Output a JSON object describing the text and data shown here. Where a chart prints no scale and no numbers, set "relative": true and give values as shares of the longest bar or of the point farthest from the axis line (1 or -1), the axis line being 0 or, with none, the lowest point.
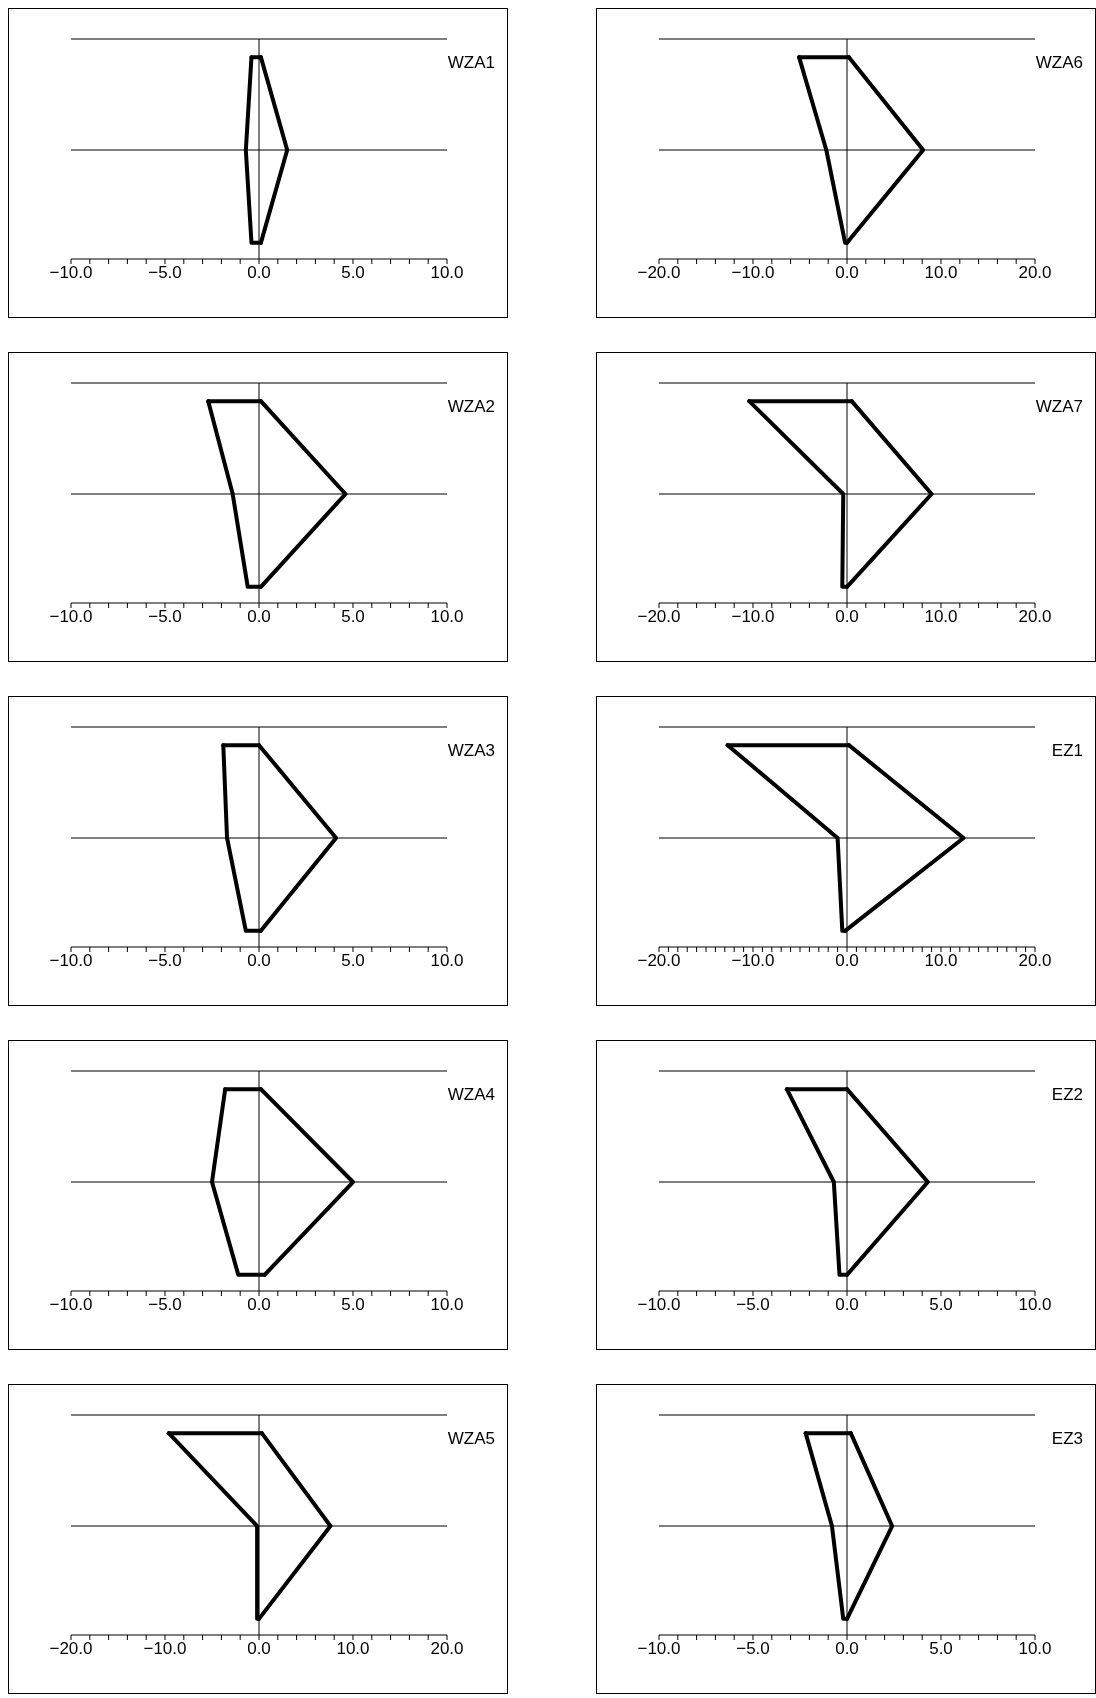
{
  "chart_data": [
    {
      "type": "line",
      "title": "WZA1",
      "relative": true,
      "tick_labels": "x",
      "xlim": [
        -10,
        10
      ],
      "xticks": [
        {
          "value": -10,
          "label": "−10.0"
        },
        {
          "value": -9,
          "label": null
        },
        {
          "value": -8,
          "label": null
        },
        {
          "value": -7,
          "label": null
        },
        {
          "value": -6,
          "label": null
        },
        {
          "value": -5,
          "label": "−5.0"
        },
        {
          "value": -4,
          "label": null
        },
        {
          "value": -3,
          "label": null
        },
        {
          "value": -2,
          "label": null
        },
        {
          "value": -1,
          "label": null
        },
        {
          "value": 0,
          "label": "0.0"
        },
        {
          "value": 1,
          "label": null
        },
        {
          "value": 2,
          "label": null
        },
        {
          "value": 3,
          "label": null
        },
        {
          "value": 4,
          "label": null
        },
        {
          "value": 5,
          "label": "5.0"
        },
        {
          "value": 6,
          "label": null
        },
        {
          "value": 7,
          "label": null
        },
        {
          "value": 8,
          "label": null
        },
        {
          "value": 9,
          "label": null
        },
        {
          "value": 10,
          "label": "10.0"
        }
      ],
      "series": [
        {
          "color": "#000000",
          "x": [
            -0.4,
            0.1
          ],
          "values": [
            1,
            1
          ]
        },
        {
          "color": "#000000",
          "x": [
            0.1,
            1.5,
            0.1
          ],
          "values": [
            1,
            0.54,
            0.08
          ]
        },
        {
          "color": "#000000",
          "x": [
            0.1,
            -0.4,
            -0.7,
            -0.4
          ],
          "values": [
            0.08,
            0.08,
            0.54,
            1
          ]
        }
      ],
      "ref_lines": [
        {
          "axis": "y",
          "value": 1.09,
          "color": "#000000"
        },
        {
          "axis": "y",
          "value": 0.54,
          "color": "#000000"
        },
        {
          "axis": "x",
          "value": 0,
          "color": "#000000"
        }
      ]
    },
    {
      "type": "line",
      "title": "WZA6",
      "relative": true,
      "tick_labels": "x",
      "xlim": [
        -20,
        20
      ],
      "xticks": [
        {
          "value": -20,
          "label": "−20.0"
        },
        {
          "value": -18,
          "label": null
        },
        {
          "value": -16,
          "label": null
        },
        {
          "value": -14,
          "label": null
        },
        {
          "value": -12,
          "label": null
        },
        {
          "value": -10,
          "label": "−10.0"
        },
        {
          "value": -8,
          "label": null
        },
        {
          "value": -6,
          "label": null
        },
        {
          "value": -4,
          "label": null
        },
        {
          "value": -2,
          "label": null
        },
        {
          "value": 0,
          "label": "0.0"
        },
        {
          "value": 2,
          "label": null
        },
        {
          "value": 4,
          "label": null
        },
        {
          "value": 6,
          "label": null
        },
        {
          "value": 8,
          "label": null
        },
        {
          "value": 10,
          "label": "10.0"
        },
        {
          "value": 12,
          "label": null
        },
        {
          "value": 14,
          "label": null
        },
        {
          "value": 16,
          "label": null
        },
        {
          "value": 18,
          "label": null
        },
        {
          "value": 20,
          "label": "20.0"
        }
      ],
      "series": [
        {
          "color": "#000000",
          "x": [
            -5.1,
            0.2
          ],
          "values": [
            1,
            1
          ]
        },
        {
          "color": "#000000",
          "x": [
            0.2,
            8.1,
            0
          ],
          "values": [
            1,
            0.54,
            0.08
          ]
        },
        {
          "color": "#000000",
          "x": [
            0,
            -0.2,
            -2.2,
            -5.1
          ],
          "values": [
            0.08,
            0.08,
            0.54,
            1
          ]
        }
      ],
      "ref_lines": [
        {
          "axis": "y",
          "value": 1.09,
          "color": "#000000"
        },
        {
          "axis": "y",
          "value": 0.54,
          "color": "#000000"
        },
        {
          "axis": "x",
          "value": 0,
          "color": "#000000"
        }
      ]
    },
    {
      "type": "line",
      "title": "WZA2",
      "relative": true,
      "tick_labels": "x",
      "xlim": [
        -10,
        10
      ],
      "xticks": [
        {
          "value": -10,
          "label": "−10.0"
        },
        {
          "value": -9,
          "label": null
        },
        {
          "value": -8,
          "label": null
        },
        {
          "value": -7,
          "label": null
        },
        {
          "value": -6,
          "label": null
        },
        {
          "value": -5,
          "label": "−5.0"
        },
        {
          "value": -4,
          "label": null
        },
        {
          "value": -3,
          "label": null
        },
        {
          "value": -2,
          "label": null
        },
        {
          "value": -1,
          "label": null
        },
        {
          "value": 0,
          "label": "0.0"
        },
        {
          "value": 1,
          "label": null
        },
        {
          "value": 2,
          "label": null
        },
        {
          "value": 3,
          "label": null
        },
        {
          "value": 4,
          "label": null
        },
        {
          "value": 5,
          "label": "5.0"
        },
        {
          "value": 6,
          "label": null
        },
        {
          "value": 7,
          "label": null
        },
        {
          "value": 8,
          "label": null
        },
        {
          "value": 9,
          "label": null
        },
        {
          "value": 10,
          "label": "10.0"
        }
      ],
      "series": [
        {
          "color": "#000000",
          "x": [
            -2.7,
            0.1
          ],
          "values": [
            1,
            1
          ]
        },
        {
          "color": "#000000",
          "x": [
            0.1,
            4.6,
            0.1
          ],
          "values": [
            1,
            0.54,
            0.08
          ]
        },
        {
          "color": "#000000",
          "x": [
            0.1,
            -0.6,
            -1.4,
            -2.7
          ],
          "values": [
            0.08,
            0.08,
            0.54,
            1
          ]
        }
      ],
      "ref_lines": [
        {
          "axis": "y",
          "value": 1.09,
          "color": "#000000"
        },
        {
          "axis": "y",
          "value": 0.54,
          "color": "#000000"
        },
        {
          "axis": "x",
          "value": 0,
          "color": "#000000"
        }
      ]
    },
    {
      "type": "line",
      "title": "WZA7",
      "relative": true,
      "tick_labels": "x",
      "xlim": [
        -20,
        20
      ],
      "xticks": [
        {
          "value": -20,
          "label": "−20.0"
        },
        {
          "value": -18,
          "label": null
        },
        {
          "value": -16,
          "label": null
        },
        {
          "value": -14,
          "label": null
        },
        {
          "value": -12,
          "label": null
        },
        {
          "value": -10,
          "label": "−10.0"
        },
        {
          "value": -8,
          "label": null
        },
        {
          "value": -6,
          "label": null
        },
        {
          "value": -4,
          "label": null
        },
        {
          "value": -2,
          "label": null
        },
        {
          "value": 0,
          "label": "0.0"
        },
        {
          "value": 2,
          "label": null
        },
        {
          "value": 4,
          "label": null
        },
        {
          "value": 6,
          "label": null
        },
        {
          "value": 8,
          "label": null
        },
        {
          "value": 10,
          "label": "10.0"
        },
        {
          "value": 12,
          "label": null
        },
        {
          "value": 14,
          "label": null
        },
        {
          "value": 16,
          "label": null
        },
        {
          "value": 18,
          "label": null
        },
        {
          "value": 20,
          "label": "20.0"
        }
      ],
      "series": [
        {
          "color": "#000000",
          "x": [
            -10.4,
            0.5
          ],
          "values": [
            1,
            1
          ]
        },
        {
          "color": "#000000",
          "x": [
            0.5,
            9.0,
            0
          ],
          "values": [
            1,
            0.54,
            0.08
          ]
        },
        {
          "color": "#000000",
          "x": [
            0,
            -0.5,
            -0.4,
            -10.4
          ],
          "values": [
            0.08,
            0.08,
            0.54,
            1
          ]
        }
      ],
      "ref_lines": [
        {
          "axis": "y",
          "value": 1.09,
          "color": "#000000"
        },
        {
          "axis": "y",
          "value": 0.54,
          "color": "#000000"
        },
        {
          "axis": "x",
          "value": 0,
          "color": "#000000"
        }
      ]
    },
    {
      "type": "line",
      "title": "WZA3",
      "relative": true,
      "tick_labels": "x",
      "xlim": [
        -10,
        10
      ],
      "xticks": [
        {
          "value": -10,
          "label": "−10.0"
        },
        {
          "value": -9,
          "label": null
        },
        {
          "value": -8,
          "label": null
        },
        {
          "value": -7,
          "label": null
        },
        {
          "value": -6,
          "label": null
        },
        {
          "value": -5,
          "label": "−5.0"
        },
        {
          "value": -4,
          "label": null
        },
        {
          "value": -3,
          "label": null
        },
        {
          "value": -2,
          "label": null
        },
        {
          "value": -1,
          "label": null
        },
        {
          "value": 0,
          "label": "0.0"
        },
        {
          "value": 1,
          "label": null
        },
        {
          "value": 2,
          "label": null
        },
        {
          "value": 3,
          "label": null
        },
        {
          "value": 4,
          "label": null
        },
        {
          "value": 5,
          "label": "5.0"
        },
        {
          "value": 6,
          "label": null
        },
        {
          "value": 7,
          "label": null
        },
        {
          "value": 8,
          "label": null
        },
        {
          "value": 9,
          "label": null
        },
        {
          "value": 10,
          "label": "10.0"
        }
      ],
      "series": [
        {
          "color": "#000000",
          "x": [
            -1.9,
            0
          ],
          "values": [
            1,
            1
          ]
        },
        {
          "color": "#000000",
          "x": [
            0,
            4.1,
            0.1
          ],
          "values": [
            1,
            0.54,
            0.08
          ]
        },
        {
          "color": "#000000",
          "x": [
            0.1,
            -0.7,
            -1.7,
            -1.9
          ],
          "values": [
            0.08,
            0.08,
            0.54,
            1
          ]
        }
      ],
      "ref_lines": [
        {
          "axis": "y",
          "value": 1.09,
          "color": "#000000"
        },
        {
          "axis": "y",
          "value": 0.54,
          "color": "#000000"
        },
        {
          "axis": "x",
          "value": 0,
          "color": "#000000"
        }
      ]
    },
    {
      "type": "line",
      "title": "EZ1",
      "relative": true,
      "tick_labels": "x",
      "xlim": [
        -20,
        20
      ],
      "xticks": [
        {
          "value": -20,
          "label": "−20.0"
        },
        {
          "value": -19,
          "label": null
        },
        {
          "value": -18,
          "label": null
        },
        {
          "value": -17,
          "label": null
        },
        {
          "value": -16,
          "label": null
        },
        {
          "value": -15,
          "label": null
        },
        {
          "value": -14,
          "label": null
        },
        {
          "value": -13,
          "label": null
        },
        {
          "value": -12,
          "label": null
        },
        {
          "value": -11,
          "label": null
        },
        {
          "value": -10,
          "label": "−10.0"
        },
        {
          "value": -9,
          "label": null
        },
        {
          "value": -8,
          "label": null
        },
        {
          "value": -7,
          "label": null
        },
        {
          "value": -6,
          "label": null
        },
        {
          "value": -5,
          "label": null
        },
        {
          "value": -4,
          "label": null
        },
        {
          "value": -3,
          "label": null
        },
        {
          "value": -2,
          "label": null
        },
        {
          "value": -1,
          "label": null
        },
        {
          "value": 0,
          "label": "0.0"
        },
        {
          "value": 1,
          "label": null
        },
        {
          "value": 2,
          "label": null
        },
        {
          "value": 3,
          "label": null
        },
        {
          "value": 4,
          "label": null
        },
        {
          "value": 5,
          "label": null
        },
        {
          "value": 6,
          "label": null
        },
        {
          "value": 7,
          "label": null
        },
        {
          "value": 8,
          "label": null
        },
        {
          "value": 9,
          "label": null
        },
        {
          "value": 10,
          "label": "10.0"
        },
        {
          "value": 11,
          "label": null
        },
        {
          "value": 12,
          "label": null
        },
        {
          "value": 13,
          "label": null
        },
        {
          "value": 14,
          "label": null
        },
        {
          "value": 15,
          "label": null
        },
        {
          "value": 16,
          "label": null
        },
        {
          "value": 17,
          "label": null
        },
        {
          "value": 18,
          "label": null
        },
        {
          "value": 19,
          "label": null
        },
        {
          "value": 20,
          "label": "20.0"
        }
      ],
      "series": [
        {
          "color": "#000000",
          "x": [
            -12.7,
            0.2
          ],
          "values": [
            1,
            1
          ]
        },
        {
          "color": "#000000",
          "x": [
            0.2,
            12.4,
            -0.2
          ],
          "values": [
            1,
            0.54,
            0.08
          ]
        },
        {
          "color": "#000000",
          "x": [
            -0.2,
            -0.5,
            -1.0,
            -12.7
          ],
          "values": [
            0.08,
            0.08,
            0.54,
            1
          ]
        }
      ],
      "ref_lines": [
        {
          "axis": "y",
          "value": 1.09,
          "color": "#000000"
        },
        {
          "axis": "y",
          "value": 0.54,
          "color": "#000000"
        },
        {
          "axis": "x",
          "value": 0,
          "color": "#000000"
        }
      ]
    },
    {
      "type": "line",
      "title": "WZA4",
      "relative": true,
      "tick_labels": "x",
      "xlim": [
        -10,
        10
      ],
      "xticks": [
        {
          "value": -10,
          "label": "−10.0"
        },
        {
          "value": -9,
          "label": null
        },
        {
          "value": -8,
          "label": null
        },
        {
          "value": -7,
          "label": null
        },
        {
          "value": -6,
          "label": null
        },
        {
          "value": -5,
          "label": "−5.0"
        },
        {
          "value": -4,
          "label": null
        },
        {
          "value": -3,
          "label": null
        },
        {
          "value": -2,
          "label": null
        },
        {
          "value": -1,
          "label": null
        },
        {
          "value": 0,
          "label": "0.0"
        },
        {
          "value": 1,
          "label": null
        },
        {
          "value": 2,
          "label": null
        },
        {
          "value": 3,
          "label": null
        },
        {
          "value": 4,
          "label": null
        },
        {
          "value": 5,
          "label": "5.0"
        },
        {
          "value": 6,
          "label": null
        },
        {
          "value": 7,
          "label": null
        },
        {
          "value": 8,
          "label": null
        },
        {
          "value": 9,
          "label": null
        },
        {
          "value": 10,
          "label": "10.0"
        }
      ],
      "series": [
        {
          "color": "#000000",
          "x": [
            -1.8,
            0.1
          ],
          "values": [
            1,
            1
          ]
        },
        {
          "color": "#000000",
          "x": [
            0.1,
            5.0,
            0.3
          ],
          "values": [
            1,
            0.54,
            0.08
          ]
        },
        {
          "color": "#000000",
          "x": [
            0.3,
            -1.1,
            -2.5,
            -1.8
          ],
          "values": [
            0.08,
            0.08,
            0.54,
            1
          ]
        }
      ],
      "ref_lines": [
        {
          "axis": "y",
          "value": 1.09,
          "color": "#000000"
        },
        {
          "axis": "y",
          "value": 0.54,
          "color": "#000000"
        },
        {
          "axis": "x",
          "value": 0,
          "color": "#000000"
        }
      ]
    },
    {
      "type": "line",
      "title": "EZ2",
      "relative": true,
      "tick_labels": "x",
      "xlim": [
        -10,
        10
      ],
      "xticks": [
        {
          "value": -10,
          "label": "−10.0"
        },
        {
          "value": -9,
          "label": null
        },
        {
          "value": -8,
          "label": null
        },
        {
          "value": -7,
          "label": null
        },
        {
          "value": -6,
          "label": null
        },
        {
          "value": -5,
          "label": "−5.0"
        },
        {
          "value": -4,
          "label": null
        },
        {
          "value": -3,
          "label": null
        },
        {
          "value": -2,
          "label": null
        },
        {
          "value": -1,
          "label": null
        },
        {
          "value": 0,
          "label": "0.0"
        },
        {
          "value": 1,
          "label": null
        },
        {
          "value": 2,
          "label": null
        },
        {
          "value": 3,
          "label": null
        },
        {
          "value": 4,
          "label": null
        },
        {
          "value": 5,
          "label": "5.0"
        },
        {
          "value": 6,
          "label": null
        },
        {
          "value": 7,
          "label": null
        },
        {
          "value": 8,
          "label": null
        },
        {
          "value": 9,
          "label": null
        },
        {
          "value": 10,
          "label": "10.0"
        }
      ],
      "series": [
        {
          "color": "#000000",
          "x": [
            -3.2,
            0
          ],
          "values": [
            1,
            1
          ]
        },
        {
          "color": "#000000",
          "x": [
            0,
            4.3,
            0
          ],
          "values": [
            1,
            0.54,
            0.08
          ]
        },
        {
          "color": "#000000",
          "x": [
            0,
            -0.4,
            -0.7,
            -3.2
          ],
          "values": [
            0.08,
            0.08,
            0.54,
            1
          ]
        }
      ],
      "ref_lines": [
        {
          "axis": "y",
          "value": 1.09,
          "color": "#000000"
        },
        {
          "axis": "y",
          "value": 0.54,
          "color": "#000000"
        },
        {
          "axis": "x",
          "value": 0,
          "color": "#000000"
        }
      ]
    },
    {
      "type": "line",
      "title": "WZA5",
      "relative": true,
      "tick_labels": "x",
      "xlim": [
        -20,
        20
      ],
      "xticks": [
        {
          "value": -20,
          "label": "−20.0"
        },
        {
          "value": -18,
          "label": null
        },
        {
          "value": -16,
          "label": null
        },
        {
          "value": -14,
          "label": null
        },
        {
          "value": -12,
          "label": null
        },
        {
          "value": -10,
          "label": "−10.0"
        },
        {
          "value": -8,
          "label": null
        },
        {
          "value": -6,
          "label": null
        },
        {
          "value": -4,
          "label": null
        },
        {
          "value": -2,
          "label": null
        },
        {
          "value": 0,
          "label": "0.0"
        },
        {
          "value": 2,
          "label": null
        },
        {
          "value": 4,
          "label": null
        },
        {
          "value": 6,
          "label": null
        },
        {
          "value": 8,
          "label": null
        },
        {
          "value": 10,
          "label": "10.0"
        },
        {
          "value": 12,
          "label": null
        },
        {
          "value": 14,
          "label": null
        },
        {
          "value": 16,
          "label": null
        },
        {
          "value": 18,
          "label": null
        },
        {
          "value": 20,
          "label": "20.0"
        }
      ],
      "series": [
        {
          "color": "#000000",
          "x": [
            -9.6,
            0.3
          ],
          "values": [
            1,
            1
          ]
        },
        {
          "color": "#000000",
          "x": [
            0.3,
            7.6,
            0
          ],
          "values": [
            1,
            0.54,
            0.08
          ]
        },
        {
          "color": "#000000",
          "x": [
            0,
            -0.2,
            -0.2,
            -9.6
          ],
          "values": [
            0.08,
            0.08,
            0.54,
            1
          ]
        }
      ],
      "ref_lines": [
        {
          "axis": "y",
          "value": 1.09,
          "color": "#000000"
        },
        {
          "axis": "y",
          "value": 0.54,
          "color": "#000000"
        },
        {
          "axis": "x",
          "value": 0,
          "color": "#000000"
        }
      ]
    },
    {
      "type": "line",
      "title": "EZ3",
      "relative": true,
      "tick_labels": "x",
      "xlim": [
        -10,
        10
      ],
      "xticks": [
        {
          "value": -10,
          "label": "−10.0"
        },
        {
          "value": -9,
          "label": null
        },
        {
          "value": -8,
          "label": null
        },
        {
          "value": -7,
          "label": null
        },
        {
          "value": -6,
          "label": null
        },
        {
          "value": -5,
          "label": "−5.0"
        },
        {
          "value": -4,
          "label": null
        },
        {
          "value": -3,
          "label": null
        },
        {
          "value": -2,
          "label": null
        },
        {
          "value": -1,
          "label": null
        },
        {
          "value": 0,
          "label": "0.0"
        },
        {
          "value": 1,
          "label": null
        },
        {
          "value": 2,
          "label": null
        },
        {
          "value": 3,
          "label": null
        },
        {
          "value": 4,
          "label": null
        },
        {
          "value": 5,
          "label": "5.0"
        },
        {
          "value": 6,
          "label": null
        },
        {
          "value": 7,
          "label": null
        },
        {
          "value": 8,
          "label": null
        },
        {
          "value": 9,
          "label": null
        },
        {
          "value": 10,
          "label": "10.0"
        }
      ],
      "series": [
        {
          "color": "#000000",
          "x": [
            -2.2,
            0.2
          ],
          "values": [
            1,
            1
          ]
        },
        {
          "color": "#000000",
          "x": [
            0.2,
            2.4,
            0
          ],
          "values": [
            1,
            0.54,
            0.08
          ]
        },
        {
          "color": "#000000",
          "x": [
            0,
            -0.2,
            -0.8,
            -2.2
          ],
          "values": [
            0.08,
            0.08,
            0.54,
            1
          ]
        }
      ],
      "ref_lines": [
        {
          "axis": "y",
          "value": 1.09,
          "color": "#000000"
        },
        {
          "axis": "y",
          "value": 0.54,
          "color": "#000000"
        },
        {
          "axis": "x",
          "value": 0,
          "color": "#000000"
        }
      ]
    }
  ]
}
